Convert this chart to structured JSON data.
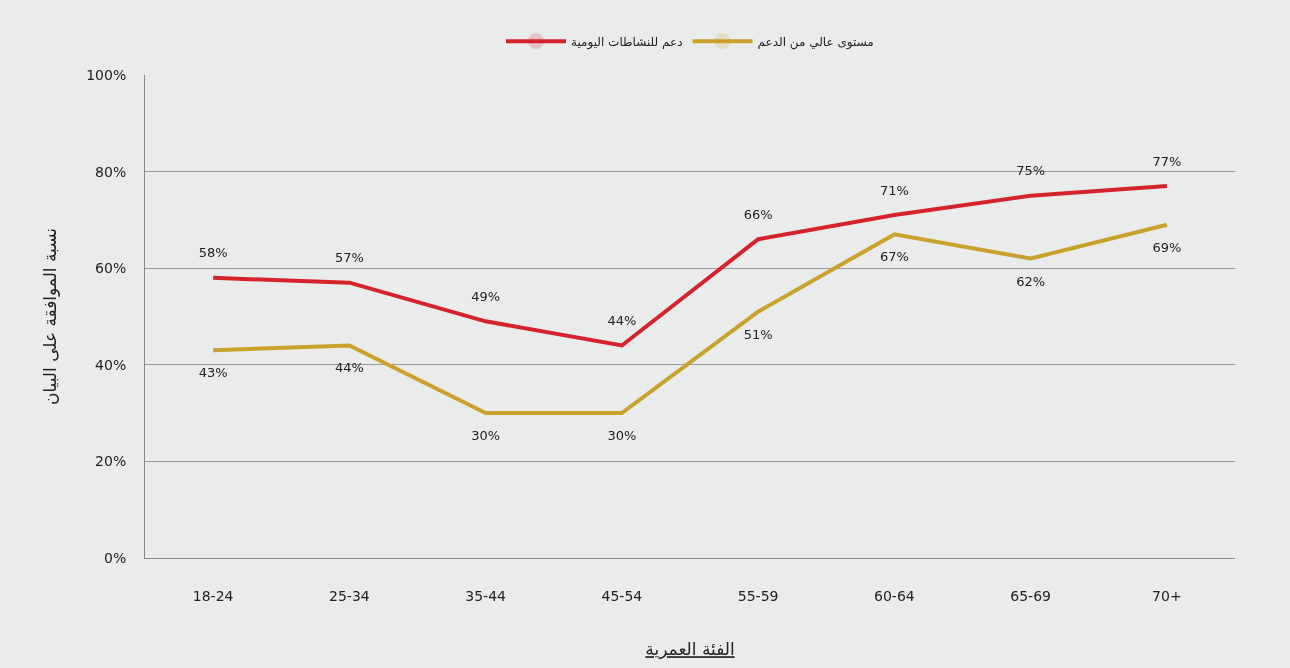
{
  "chart_data": {
    "type": "line",
    "xlabel": "الفئة العمرية",
    "ylabel": "نسبة الموافقة على البيان",
    "categories": [
      "18-24",
      "25-34",
      "35-44",
      "45-54",
      "55-59",
      "60-64",
      "65-69",
      "70+"
    ],
    "series": [
      {
        "name": "دعم للنشاطات اليومية",
        "color": "#d4232b",
        "values": [
          58,
          57,
          49,
          44,
          66,
          71,
          75,
          77
        ],
        "value_labels": [
          "58%",
          "57%",
          "49%",
          "44%",
          "66%",
          "71%",
          "75%",
          "77%"
        ]
      },
      {
        "name": "مستوى عالي من الدعم",
        "color": "#c9a22e",
        "values": [
          43,
          44,
          30,
          30,
          51,
          67,
          62,
          69
        ],
        "value_labels": [
          "43%",
          "44%",
          "30%",
          "30%",
          "51%",
          "67%",
          "62%",
          "69%"
        ]
      }
    ],
    "ylim": [
      0,
      100
    ],
    "yticks": [
      {
        "value": 0,
        "label": "0%"
      },
      {
        "value": 20,
        "label": "20%"
      },
      {
        "value": 40,
        "label": "40%"
      },
      {
        "value": 60,
        "label": "60%"
      },
      {
        "value": 80,
        "label": "80%"
      },
      {
        "value": 100,
        "label": "100%"
      }
    ],
    "grid": "y",
    "legend": "top",
    "marker": "none",
    "line_style": "solid"
  }
}
